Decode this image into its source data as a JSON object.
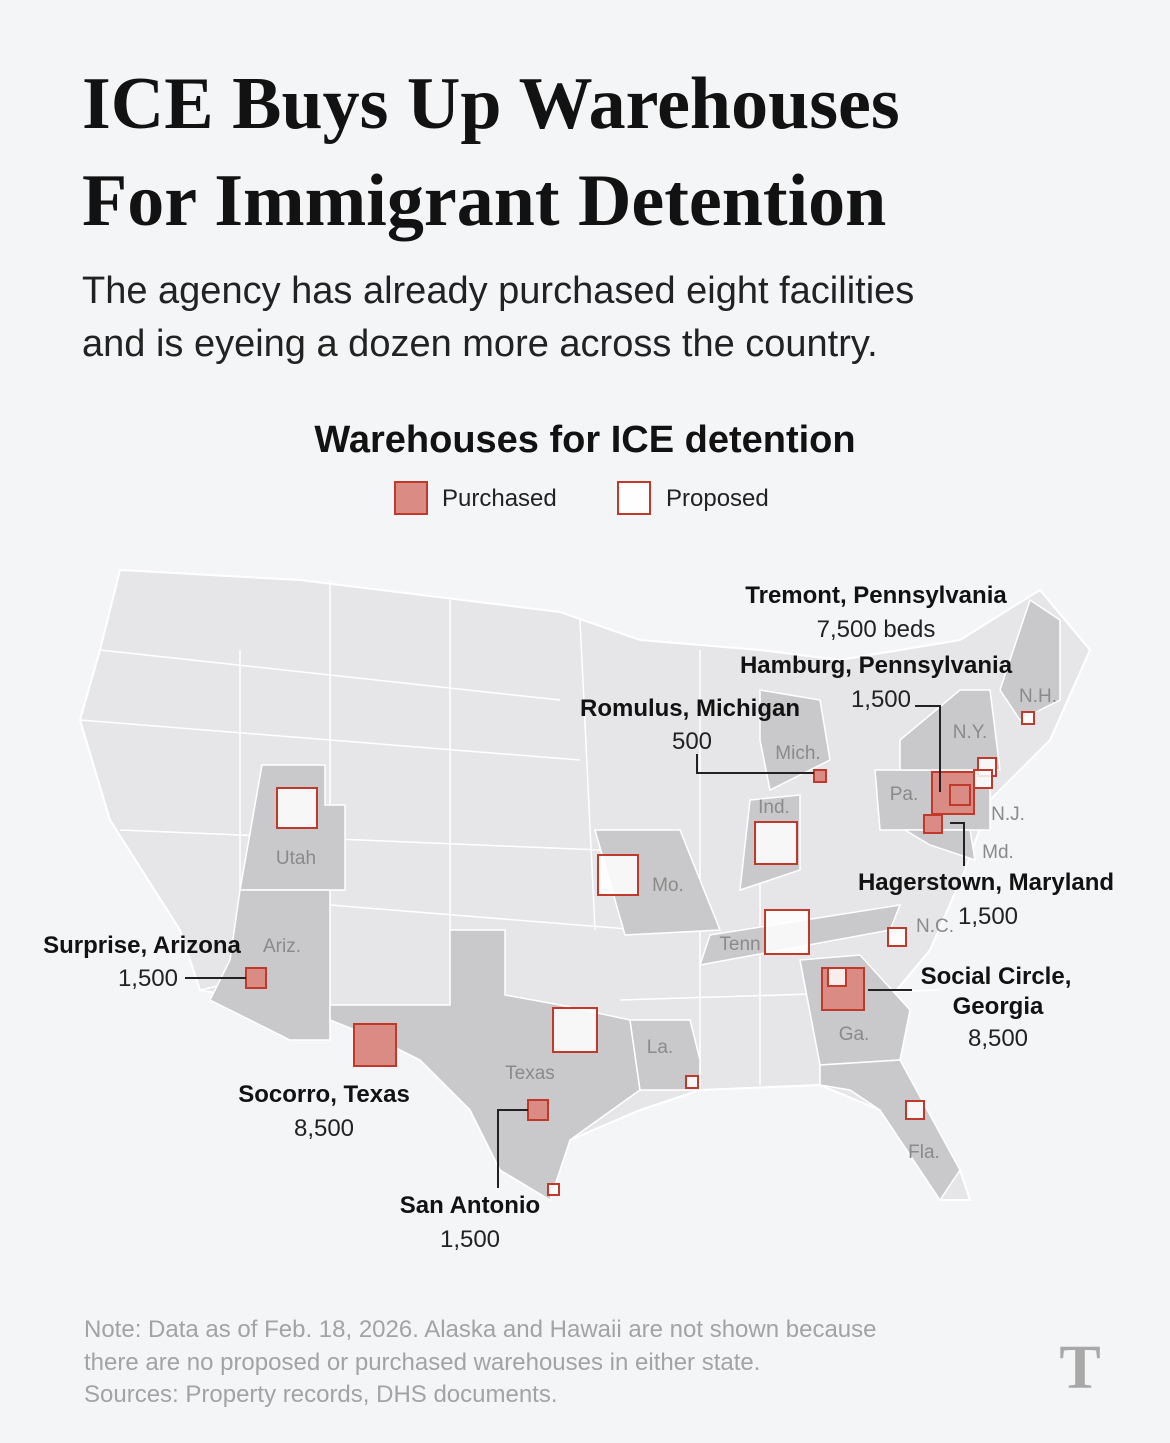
{
  "header": {
    "title_lines": [
      "ICE Buys Up Warehouses",
      "For Immigrant Detention"
    ],
    "subtitle_lines": [
      "The agency has already purchased eight facilities",
      "and is eyeing a dozen more across the country."
    ]
  },
  "map": {
    "title": "Warehouses for ICE detention",
    "legend": [
      "Purchased",
      "Proposed"
    ],
    "state_labels": [
      "Utah",
      "Ariz.",
      "Texas",
      "La.",
      "Mo.",
      "Ind.",
      "Mich.",
      "Tenn",
      "Ga.",
      "Fla.",
      "N.C.",
      "Pa.",
      "N.Y.",
      "N.H.",
      "N.J.",
      "Md."
    ],
    "annotations": [
      {
        "place": [
          "Tremont, Pennsylvania"
        ],
        "beds": "7,500 beds"
      },
      {
        "place": [
          "Hamburg, Pennsylvania"
        ],
        "beds": "1,500"
      },
      {
        "place": [
          "Romulus, Michigan"
        ],
        "beds": "500"
      },
      {
        "place": [
          "Hagerstown, Maryland"
        ],
        "beds": "1,500"
      },
      {
        "place": [
          "Social Circle,",
          "Georgia"
        ],
        "beds": "8,500"
      },
      {
        "place": [
          "Surprise, Arizona"
        ],
        "beds": "1,500"
      },
      {
        "place": [
          "Socorro, Texas"
        ],
        "beds": "8,500"
      },
      {
        "place": [
          "San Antonio"
        ],
        "beds": "1,500"
      }
    ]
  },
  "footer": {
    "note_lines": [
      "Note: Data as of Feb. 18, 2026. Alaska and Hawaii are not shown because",
      "there are no proposed or purchased warehouses in either state."
    ],
    "sources": "Sources: Property records, DHS documents.",
    "logo": "T"
  }
}
